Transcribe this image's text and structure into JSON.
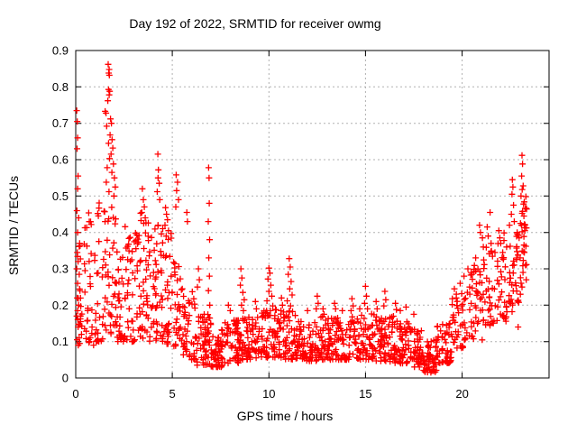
{
  "page": {
    "background": "#ffffff"
  },
  "chart_data": {
    "type": "scatter",
    "title": "Day 192 of 2022, SRMTID for receiver owmg",
    "xlabel": "GPS time / hours",
    "ylabel": "SRMTID / TECUs",
    "xlim": [
      0,
      24.5
    ],
    "ylim": [
      0,
      0.9
    ],
    "xticks": [
      "0",
      "5",
      "10",
      "15",
      "20"
    ],
    "yticks": [
      "0",
      "0.1",
      "0.2",
      "0.3",
      "0.4",
      "0.5",
      "0.6",
      "0.7",
      "0.8",
      "0.9"
    ],
    "grid": {
      "show": true,
      "color": "#b0b0b0",
      "dash": "2,3"
    },
    "axis_color": "#000000",
    "marker": {
      "shape": "plus",
      "color": "#ff0000",
      "size": 7,
      "stroke_width": 1.3
    },
    "legend": null,
    "series": [
      {
        "name": "SRMTID",
        "points": [
          [
            0.05,
            0.735
          ],
          [
            0.08,
            0.705
          ],
          [
            0.1,
            0.66
          ],
          [
            0.07,
            0.63
          ],
          [
            0.12,
            0.555
          ],
          [
            0.1,
            0.52
          ],
          [
            0.06,
            0.46
          ],
          [
            0.15,
            0.44
          ],
          [
            0.1,
            0.4
          ],
          [
            0.2,
            0.37
          ],
          [
            0.08,
            0.345
          ],
          [
            0.12,
            0.32
          ],
          [
            0.05,
            0.3
          ],
          [
            0.18,
            0.285
          ],
          [
            0.1,
            0.26
          ],
          [
            0.22,
            0.24
          ],
          [
            0.08,
            0.22
          ],
          [
            0.15,
            0.2
          ],
          [
            0.1,
            0.185
          ],
          [
            0.05,
            0.17
          ],
          [
            0.25,
            0.155
          ],
          [
            0.12,
            0.14
          ],
          [
            0.3,
            0.12
          ],
          [
            0.07,
            0.105
          ],
          [
            0.2,
            0.095
          ],
          [
            1.68,
            0.862
          ],
          [
            1.73,
            0.848
          ],
          [
            1.71,
            0.838
          ],
          [
            1.74,
            0.832
          ],
          [
            1.7,
            0.793
          ],
          [
            1.76,
            0.788
          ],
          [
            1.73,
            0.778
          ],
          [
            1.66,
            0.762
          ],
          [
            1.52,
            0.733
          ],
          [
            1.57,
            0.728
          ],
          [
            1.8,
            0.712
          ],
          [
            1.85,
            0.7
          ],
          [
            1.6,
            0.692
          ],
          [
            1.78,
            0.668
          ],
          [
            1.88,
            0.655
          ],
          [
            1.7,
            0.645
          ],
          [
            1.92,
            0.632
          ],
          [
            1.83,
            0.615
          ],
          [
            1.75,
            0.603
          ],
          [
            1.95,
            0.588
          ],
          [
            1.63,
            0.578
          ],
          [
            1.87,
            0.565
          ],
          [
            2.0,
            0.55
          ],
          [
            1.58,
            0.538
          ],
          [
            2.05,
            0.525
          ],
          [
            1.72,
            0.512
          ],
          [
            1.98,
            0.5
          ],
          [
            3.45,
            0.52
          ],
          [
            3.5,
            0.49
          ],
          [
            3.55,
            0.47
          ],
          [
            3.42,
            0.455
          ],
          [
            3.6,
            0.44
          ],
          [
            3.52,
            0.425
          ],
          [
            4.25,
            0.615
          ],
          [
            4.28,
            0.572
          ],
          [
            4.26,
            0.55
          ],
          [
            4.32,
            0.535
          ],
          [
            4.22,
            0.512
          ],
          [
            4.35,
            0.49
          ],
          [
            4.65,
            0.468
          ],
          [
            4.7,
            0.45
          ],
          [
            4.75,
            0.435
          ],
          [
            4.62,
            0.42
          ],
          [
            4.8,
            0.405
          ],
          [
            4.68,
            0.39
          ],
          [
            5.2,
            0.558
          ],
          [
            5.27,
            0.538
          ],
          [
            5.22,
            0.515
          ],
          [
            5.32,
            0.49
          ],
          [
            5.18,
            0.47
          ],
          [
            5.75,
            0.455
          ],
          [
            5.78,
            0.43
          ],
          [
            6.35,
            0.3
          ],
          [
            6.4,
            0.27
          ],
          [
            6.3,
            0.25
          ],
          [
            6.88,
            0.578
          ],
          [
            6.9,
            0.55
          ],
          [
            6.91,
            0.48
          ],
          [
            6.86,
            0.43
          ],
          [
            6.93,
            0.38
          ],
          [
            6.89,
            0.33
          ],
          [
            6.92,
            0.28
          ],
          [
            6.87,
            0.24
          ],
          [
            6.94,
            0.2
          ],
          [
            6.9,
            0.165
          ],
          [
            7.9,
            0.2
          ],
          [
            8.0,
            0.185
          ],
          [
            8.55,
            0.3
          ],
          [
            8.6,
            0.275
          ],
          [
            8.52,
            0.255
          ],
          [
            8.65,
            0.235
          ],
          [
            8.72,
            0.215
          ],
          [
            8.58,
            0.2
          ],
          [
            8.68,
            0.185
          ],
          [
            9.3,
            0.21
          ],
          [
            9.35,
            0.19
          ],
          [
            10.0,
            0.302
          ],
          [
            10.05,
            0.288
          ],
          [
            9.95,
            0.272
          ],
          [
            10.1,
            0.255
          ],
          [
            10.0,
            0.238
          ],
          [
            10.15,
            0.225
          ],
          [
            9.9,
            0.212
          ],
          [
            10.2,
            0.198
          ],
          [
            10.08,
            0.185
          ],
          [
            10.65,
            0.22
          ],
          [
            10.7,
            0.2
          ],
          [
            10.62,
            0.185
          ],
          [
            11.05,
            0.328
          ],
          [
            11.1,
            0.305
          ],
          [
            11.0,
            0.285
          ],
          [
            11.15,
            0.265
          ],
          [
            11.08,
            0.245
          ],
          [
            11.2,
            0.228
          ],
          [
            10.95,
            0.212
          ],
          [
            11.12,
            0.198
          ],
          [
            12.0,
            0.185
          ],
          [
            12.5,
            0.225
          ],
          [
            12.55,
            0.205
          ],
          [
            12.45,
            0.19
          ],
          [
            12.8,
            0.19
          ],
          [
            12.85,
            0.175
          ],
          [
            13.4,
            0.205
          ],
          [
            13.45,
            0.19
          ],
          [
            13.8,
            0.185
          ],
          [
            14.3,
            0.218
          ],
          [
            14.36,
            0.198
          ],
          [
            14.25,
            0.185
          ],
          [
            14.7,
            0.19
          ],
          [
            15.0,
            0.252
          ],
          [
            15.05,
            0.225
          ],
          [
            14.95,
            0.205
          ],
          [
            15.1,
            0.19
          ],
          [
            15.55,
            0.21
          ],
          [
            15.6,
            0.19
          ],
          [
            16.0,
            0.238
          ],
          [
            16.05,
            0.215
          ],
          [
            15.95,
            0.198
          ],
          [
            16.55,
            0.205
          ],
          [
            16.6,
            0.188
          ],
          [
            16.8,
            0.185
          ],
          [
            17.1,
            0.195
          ],
          [
            17.5,
            0.175
          ],
          [
            19.6,
            0.245
          ],
          [
            19.7,
            0.22
          ],
          [
            19.9,
            0.26
          ],
          [
            20.1,
            0.28
          ],
          [
            20.3,
            0.3
          ],
          [
            20.5,
            0.285
          ],
          [
            20.7,
            0.33
          ],
          [
            20.9,
            0.42
          ],
          [
            20.95,
            0.4
          ],
          [
            21.05,
            0.385
          ],
          [
            21.1,
            0.36
          ],
          [
            21.3,
            0.415
          ],
          [
            21.35,
            0.39
          ],
          [
            21.45,
            0.455
          ],
          [
            21.5,
            0.37
          ],
          [
            21.7,
            0.345
          ],
          [
            21.9,
            0.405
          ],
          [
            21.95,
            0.385
          ],
          [
            22.0,
            0.37
          ],
          [
            22.1,
            0.345
          ],
          [
            22.3,
            0.36
          ],
          [
            22.45,
            0.42
          ],
          [
            22.6,
            0.545
          ],
          [
            22.63,
            0.525
          ],
          [
            22.58,
            0.505
          ],
          [
            22.66,
            0.475
          ],
          [
            22.55,
            0.45
          ],
          [
            22.7,
            0.43
          ],
          [
            22.85,
            0.4
          ],
          [
            22.9,
            0.14
          ],
          [
            23.1,
            0.612
          ],
          [
            23.13,
            0.588
          ],
          [
            23.08,
            0.555
          ],
          [
            23.16,
            0.528
          ],
          [
            23.11,
            0.518
          ],
          [
            23.05,
            0.5
          ],
          [
            23.18,
            0.478
          ],
          [
            23.13,
            0.458
          ],
          [
            23.2,
            0.445
          ],
          [
            23.02,
            0.425
          ],
          [
            23.25,
            0.405
          ],
          [
            22.95,
            0.385
          ],
          [
            23.3,
            0.362
          ],
          [
            23.22,
            0.345
          ],
          [
            23.0,
            0.33
          ],
          [
            23.28,
            0.31
          ],
          [
            23.15,
            0.29
          ],
          [
            23.32,
            0.27
          ],
          [
            23.1,
            0.25
          ]
        ],
        "bands_format": "[x_start_hours, x_end_hours, point_count, y_min_TECUs, y_max_TECUs, skew_toward_min]",
        "dense_bands": [
          [
            0.0,
            0.45,
            18,
            0.09,
            0.38,
            1.3
          ],
          [
            0.45,
            0.95,
            30,
            0.09,
            0.46,
            1.5
          ],
          [
            0.95,
            1.45,
            28,
            0.1,
            0.5,
            1.5
          ],
          [
            1.45,
            2.1,
            40,
            0.12,
            0.5,
            1.2
          ],
          [
            2.1,
            2.65,
            38,
            0.1,
            0.48,
            1.4
          ],
          [
            2.65,
            3.25,
            40,
            0.1,
            0.42,
            1.3
          ],
          [
            3.25,
            3.85,
            42,
            0.1,
            0.46,
            1.4
          ],
          [
            3.85,
            4.45,
            40,
            0.1,
            0.44,
            1.4
          ],
          [
            4.45,
            5.05,
            40,
            0.09,
            0.42,
            1.4
          ],
          [
            5.05,
            5.55,
            30,
            0.08,
            0.34,
            1.4
          ],
          [
            5.55,
            6.2,
            45,
            0.05,
            0.24,
            1.5
          ],
          [
            6.2,
            7.0,
            55,
            0.035,
            0.175,
            1.4
          ],
          [
            7.0,
            7.65,
            55,
            0.03,
            0.14,
            1.4
          ],
          [
            7.65,
            8.6,
            60,
            0.04,
            0.16,
            1.4
          ],
          [
            8.6,
            9.6,
            60,
            0.05,
            0.17,
            1.4
          ],
          [
            9.6,
            10.45,
            55,
            0.055,
            0.19,
            1.4
          ],
          [
            10.45,
            11.45,
            60,
            0.05,
            0.185,
            1.4
          ],
          [
            11.45,
            12.45,
            65,
            0.045,
            0.165,
            1.4
          ],
          [
            12.45,
            13.45,
            65,
            0.05,
            0.17,
            1.4
          ],
          [
            13.45,
            14.45,
            65,
            0.05,
            0.17,
            1.4
          ],
          [
            14.45,
            15.45,
            65,
            0.05,
            0.18,
            1.4
          ],
          [
            15.45,
            16.45,
            65,
            0.045,
            0.17,
            1.4
          ],
          [
            16.45,
            17.45,
            65,
            0.04,
            0.16,
            1.4
          ],
          [
            17.45,
            18.0,
            40,
            0.03,
            0.145,
            1.4
          ],
          [
            18.0,
            18.7,
            55,
            0.015,
            0.105,
            1.4
          ],
          [
            18.7,
            19.45,
            48,
            0.04,
            0.155,
            1.3
          ],
          [
            19.45,
            20.25,
            42,
            0.08,
            0.235,
            1.2
          ],
          [
            20.25,
            21.05,
            40,
            0.1,
            0.31,
            1.2
          ],
          [
            21.05,
            21.85,
            40,
            0.13,
            0.365,
            1.1
          ],
          [
            21.85,
            22.55,
            36,
            0.15,
            0.4,
            1.1
          ],
          [
            22.55,
            23.05,
            26,
            0.18,
            0.42,
            1.1
          ],
          [
            23.05,
            23.35,
            20,
            0.24,
            0.5,
            1.0
          ]
        ]
      }
    ]
  }
}
